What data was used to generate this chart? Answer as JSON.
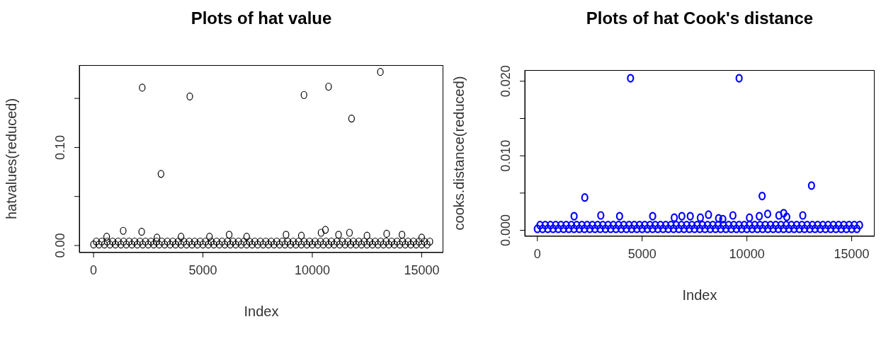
{
  "chart_data": [
    {
      "type": "scatter",
      "title": "Plots of hat value",
      "xlabel": "Index",
      "ylabel": "hatvalues(reduced)",
      "marker": "circle",
      "grid": false,
      "legend": false,
      "xlim": [
        -650,
        15990
      ],
      "ylim": [
        -0.0072,
        0.184
      ],
      "xticks": [
        0,
        5000,
        10000,
        15000
      ],
      "yticks": [
        {
          "value": 0,
          "label": "0.00"
        },
        {
          "value": 0.05,
          "label": null
        },
        {
          "value": 0.1,
          "label": "0.10"
        },
        {
          "value": 0.15,
          "label": null
        }
      ],
      "series": [
        {
          "color": "#000000",
          "x": [
            2226,
            3083,
            4400,
            9620,
            10745,
            11794,
            13112
          ],
          "values": [
            0.161,
            0.073,
            0.152,
            0.1535,
            0.162,
            0.1295,
            0.177
          ]
        },
        {
          "color": "#000000",
          "x": [
            600,
            1356,
            2200,
            2900,
            4000,
            5300,
            6200,
            7000,
            8800,
            9500,
            10400,
            10600,
            11200,
            11700,
            12500,
            13400,
            14100,
            15000
          ],
          "values": [
            0.009,
            0.015,
            0.014,
            0.008,
            0.009,
            0.009,
            0.011,
            0.009,
            0.011,
            0.01,
            0.013,
            0.016,
            0.011,
            0.013,
            0.01,
            0.012,
            0.011,
            0.008
          ]
        },
        {
          "color": "#000000",
          "x": [
            0,
            250,
            500,
            750,
            1000,
            1250,
            1500,
            1750,
            2000,
            2250,
            2500,
            2750,
            3000,
            3250,
            3500,
            3750,
            4000,
            4250,
            4500,
            4750,
            5000,
            5250,
            5500,
            5750,
            6000,
            6250,
            6500,
            6750,
            7000,
            7250,
            7500,
            7750,
            8000,
            8250,
            8500,
            8750,
            9000,
            9250,
            9500,
            9750,
            10000,
            10250,
            10500,
            10750,
            11000,
            11250,
            11500,
            11750,
            12000,
            12250,
            12500,
            12750,
            13000,
            13250,
            13500,
            13750,
            14000,
            14250,
            14500,
            14750,
            15000,
            15250
          ],
          "values": [
            0.001,
            0.001,
            0.001,
            0.001,
            0.001,
            0.001,
            0.001,
            0.001,
            0.001,
            0.001,
            0.001,
            0.001,
            0.001,
            0.001,
            0.001,
            0.001,
            0.001,
            0.001,
            0.001,
            0.001,
            0.001,
            0.001,
            0.001,
            0.001,
            0.001,
            0.001,
            0.001,
            0.001,
            0.001,
            0.001,
            0.001,
            0.001,
            0.001,
            0.001,
            0.001,
            0.001,
            0.001,
            0.001,
            0.001,
            0.001,
            0.001,
            0.001,
            0.001,
            0.001,
            0.001,
            0.001,
            0.001,
            0.001,
            0.001,
            0.001,
            0.001,
            0.001,
            0.001,
            0.001,
            0.001,
            0.001,
            0.001,
            0.001,
            0.001,
            0.001,
            0.001,
            0.001
          ]
        },
        {
          "color": "#000000",
          "x": [
            125,
            375,
            625,
            875,
            1125,
            1375,
            1625,
            1875,
            2125,
            2375,
            2625,
            2875,
            3125,
            3375,
            3625,
            3875,
            4125,
            4375,
            4625,
            4875,
            5125,
            5375,
            5625,
            5875,
            6125,
            6375,
            6625,
            6875,
            7125,
            7375,
            7625,
            7875,
            8125,
            8375,
            8625,
            8875,
            9125,
            9375,
            9625,
            9875,
            10125,
            10375,
            10625,
            10875,
            11125,
            11375,
            11625,
            11875,
            12125,
            12375,
            12625,
            12875,
            13125,
            13375,
            13625,
            13875,
            14125,
            14375,
            14625,
            14875,
            15125,
            15375
          ],
          "values": [
            0.004,
            0.004,
            0.004,
            0.004,
            0.004,
            0.004,
            0.004,
            0.004,
            0.004,
            0.004,
            0.004,
            0.004,
            0.004,
            0.004,
            0.004,
            0.004,
            0.004,
            0.004,
            0.004,
            0.004,
            0.004,
            0.004,
            0.004,
            0.004,
            0.004,
            0.004,
            0.004,
            0.004,
            0.004,
            0.004,
            0.004,
            0.004,
            0.004,
            0.004,
            0.004,
            0.004,
            0.004,
            0.004,
            0.004,
            0.004,
            0.004,
            0.004,
            0.004,
            0.004,
            0.004,
            0.004,
            0.004,
            0.004,
            0.004,
            0.004,
            0.004,
            0.004,
            0.004,
            0.004,
            0.004,
            0.004,
            0.004,
            0.004,
            0.004,
            0.004,
            0.004,
            0.004
          ]
        }
      ]
    },
    {
      "type": "scatter",
      "title": "Plots of hat Cook's distance",
      "xlabel": "Index",
      "ylabel": "cooks.distance(reduced)",
      "marker": "circle",
      "grid": false,
      "legend": false,
      "xlim": [
        -600,
        16095
      ],
      "ylim": [
        -0.0008,
        0.0215
      ],
      "xticks": [
        0,
        5000,
        10000,
        15000
      ],
      "yticks": [
        {
          "value": 0,
          "label": "0.000"
        },
        {
          "value": 0.005,
          "label": null
        },
        {
          "value": 0.01,
          "label": "0.010"
        },
        {
          "value": 0.015,
          "label": null
        },
        {
          "value": 0.02,
          "label": "0.020"
        }
      ],
      "series": [
        {
          "color": "#0000ff",
          "x": [
            4446,
            9628,
            2263,
            10727,
            13083
          ],
          "values": [
            0.0204,
            0.0204,
            0.0044,
            0.0046,
            0.006
          ]
        },
        {
          "color": "#0000ff",
          "x": [
            1754,
            3027,
            3924,
            5503,
            6534,
            6895,
            7297,
            7779,
            8167,
            8649,
            8850,
            9332,
            10122,
            10590,
            10992,
            11527,
            11755,
            11903,
            12666
          ],
          "values": [
            0.0019,
            0.002,
            0.0019,
            0.0019,
            0.0017,
            0.0019,
            0.0019,
            0.0017,
            0.0021,
            0.0016,
            0.0015,
            0.002,
            0.0017,
            0.0019,
            0.0022,
            0.002,
            0.0023,
            0.0018,
            0.002
          ]
        },
        {
          "color": "#0000ff",
          "x": [
            0,
            250,
            500,
            750,
            1000,
            1250,
            1500,
            1750,
            2000,
            2250,
            2500,
            2750,
            3000,
            3250,
            3500,
            3750,
            4000,
            4250,
            4500,
            4750,
            5000,
            5250,
            5500,
            5750,
            6000,
            6250,
            6500,
            6750,
            7000,
            7250,
            7500,
            7750,
            8000,
            8250,
            8500,
            8750,
            9000,
            9250,
            9500,
            9750,
            10000,
            10250,
            10500,
            10750,
            11000,
            11250,
            11500,
            11750,
            12000,
            12250,
            12500,
            12750,
            13000,
            13250,
            13500,
            13750,
            14000,
            14250,
            14500,
            14750,
            15000,
            15250
          ],
          "values": [
            0.0002,
            0.0002,
            0.0002,
            0.0002,
            0.0002,
            0.0002,
            0.0002,
            0.0002,
            0.0002,
            0.0002,
            0.0002,
            0.0002,
            0.0002,
            0.0002,
            0.0002,
            0.0002,
            0.0002,
            0.0002,
            0.0002,
            0.0002,
            0.0002,
            0.0002,
            0.0002,
            0.0002,
            0.0002,
            0.0002,
            0.0002,
            0.0002,
            0.0002,
            0.0002,
            0.0002,
            0.0002,
            0.0002,
            0.0002,
            0.0002,
            0.0002,
            0.0002,
            0.0002,
            0.0002,
            0.0002,
            0.0002,
            0.0002,
            0.0002,
            0.0002,
            0.0002,
            0.0002,
            0.0002,
            0.0002,
            0.0002,
            0.0002,
            0.0002,
            0.0002,
            0.0002,
            0.0002,
            0.0002,
            0.0002,
            0.0002,
            0.0002,
            0.0002,
            0.0002,
            0.0002,
            0.0002
          ]
        },
        {
          "color": "#0000ff",
          "x": [
            125,
            375,
            625,
            875,
            1125,
            1375,
            1625,
            1875,
            2125,
            2375,
            2625,
            2875,
            3125,
            3375,
            3625,
            3875,
            4125,
            4375,
            4625,
            4875,
            5125,
            5375,
            5625,
            5875,
            6125,
            6375,
            6625,
            6875,
            7125,
            7375,
            7625,
            7875,
            8125,
            8375,
            8625,
            8875,
            9125,
            9375,
            9625,
            9875,
            10125,
            10375,
            10625,
            10875,
            11125,
            11375,
            11625,
            11875,
            12125,
            12375,
            12625,
            12875,
            13125,
            13375,
            13625,
            13875,
            14125,
            14375,
            14625,
            14875,
            15125,
            15375
          ],
          "values": [
            0.0007,
            0.0007,
            0.0007,
            0.0007,
            0.0007,
            0.0007,
            0.0007,
            0.0007,
            0.0007,
            0.0007,
            0.0007,
            0.0007,
            0.0007,
            0.0007,
            0.0007,
            0.0007,
            0.0007,
            0.0007,
            0.0007,
            0.0007,
            0.0007,
            0.0007,
            0.0007,
            0.0007,
            0.0007,
            0.0007,
            0.0007,
            0.0007,
            0.0007,
            0.0007,
            0.0007,
            0.0007,
            0.0007,
            0.0007,
            0.0007,
            0.0007,
            0.0007,
            0.0007,
            0.0007,
            0.0007,
            0.0007,
            0.0007,
            0.0007,
            0.0007,
            0.0007,
            0.0007,
            0.0007,
            0.0007,
            0.0007,
            0.0007,
            0.0007,
            0.0007,
            0.0007,
            0.0007,
            0.0007,
            0.0007,
            0.0007,
            0.0007,
            0.0007,
            0.0007,
            0.0007,
            0.0007
          ]
        }
      ]
    }
  ]
}
